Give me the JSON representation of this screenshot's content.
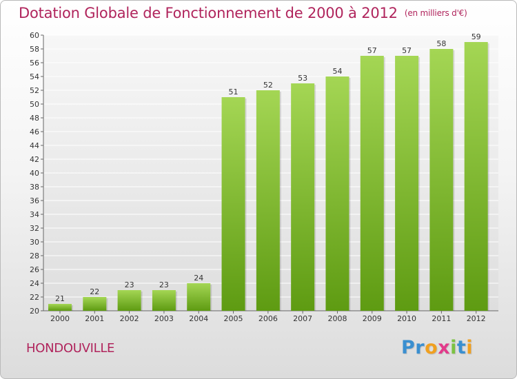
{
  "header": {
    "title": "Dotation Globale de Fonctionnement de 2000 à 2012",
    "unit": "(en milliers d'€)"
  },
  "footer": {
    "commune": "HONDOUVILLE",
    "logo_letters": [
      "P",
      "r",
      "o",
      "x",
      "i",
      "t",
      "i"
    ]
  },
  "colors": {
    "title": "#b0245c",
    "bar_top": "#a4d654",
    "bar_bottom": "#5e9b12",
    "logo": [
      "#3a8fd0",
      "#3a8fd0",
      "#f0a020",
      "#e23a8a",
      "#7cc243",
      "#3a8fd0",
      "#f0a020"
    ]
  },
  "chart_data": {
    "type": "bar",
    "title": "Dotation Globale de Fonctionnement de 2000 à 2012",
    "categories": [
      "2000",
      "2001",
      "2002",
      "2003",
      "2004",
      "2005",
      "2006",
      "2007",
      "2008",
      "2009",
      "2010",
      "2011",
      "2012"
    ],
    "values": [
      21,
      22,
      23,
      23,
      24,
      51,
      52,
      53,
      54,
      57,
      57,
      58,
      59
    ],
    "ylim": [
      20,
      60
    ],
    "yticks": [
      20,
      22,
      24,
      26,
      28,
      30,
      32,
      34,
      36,
      38,
      40,
      42,
      44,
      46,
      48,
      50,
      52,
      54,
      56,
      58,
      60
    ],
    "grid": true,
    "legend": "none"
  }
}
